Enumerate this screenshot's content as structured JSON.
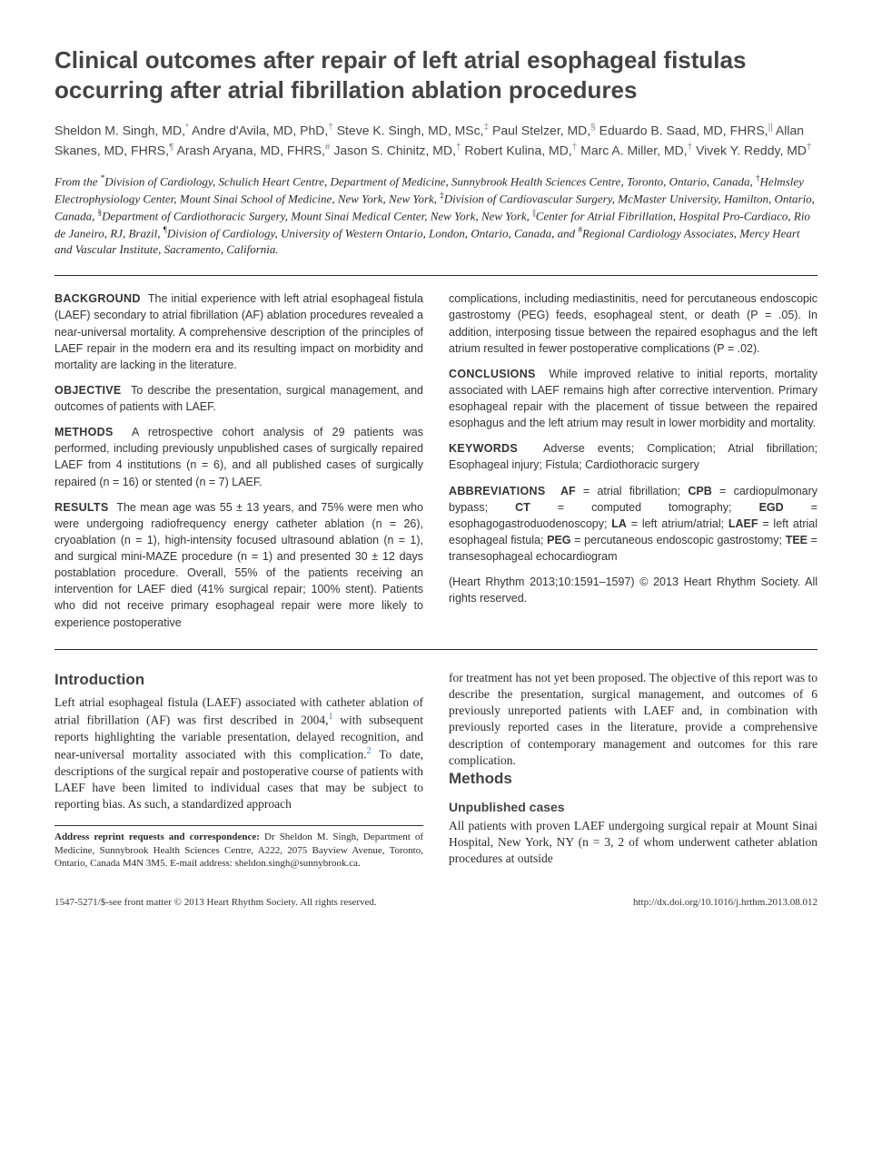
{
  "title": "Clinical outcomes after repair of left atrial esophageal fistulas occurring after atrial fibrillation ablation procedures",
  "authors_html": "Sheldon M. Singh, MD,<sup>*</sup> Andre d'Avila, MD, PhD,<sup>†</sup> Steve K. Singh, MD, MSc,<sup>‡</sup> Paul Stelzer, MD,<sup>§</sup> Eduardo B. Saad, MD, FHRS,<sup>||</sup> Allan Skanes, MD, FHRS,<sup>¶</sup> Arash Aryana, MD, FHRS,<sup>#</sup> Jason S. Chinitz, MD,<sup>†</sup> Robert Kulina, MD,<sup>†</sup> Marc A. Miller, MD,<sup>†</sup> Vivek Y. Reddy, MD<sup>†</sup>",
  "affiliations_html": "From the <sup>*</sup>Division of Cardiology, Schulich Heart Centre, Department of Medicine, Sunnybrook Health Sciences Centre, Toronto, Ontario, Canada, <sup>†</sup>Helmsley Electrophysiology Center, Mount Sinai School of Medicine, New York, New York, <sup>‡</sup>Division of Cardiovascular Surgery, McMaster University, Hamilton, Ontario, Canada, <sup>§</sup>Department of Cardiothoracic Surgery, Mount Sinai Medical Center, New York, New York, <sup>||</sup>Center for Atrial Fibrillation, Hospital Pro-Cardiaco, Rio de Janeiro, RJ, Brazil, <sup>¶</sup>Division of Cardiology, University of Western Ontario, London, Ontario, Canada, and <sup>#</sup>Regional Cardiology Associates, Mercy Heart and Vascular Institute, Sacramento, California.",
  "abstract": {
    "background": {
      "label": "BACKGROUND",
      "text": "The initial experience with left atrial esophageal fistula (LAEF) secondary to atrial fibrillation (AF) ablation procedures revealed a near-universal mortality. A comprehensive description of the principles of LAEF repair in the modern era and its resulting impact on morbidity and mortality are lacking in the literature."
    },
    "objective": {
      "label": "OBJECTIVE",
      "text": "To describe the presentation, surgical management, and outcomes of patients with LAEF."
    },
    "methods": {
      "label": "METHODS",
      "text": "A retrospective cohort analysis of 29 patients was performed, including previously unpublished cases of surgically repaired LAEF from 4 institutions (n = 6), and all published cases of surgically repaired (n = 16) or stented (n = 7) LAEF."
    },
    "results": {
      "label": "RESULTS",
      "text": "The mean age was 55 ± 13 years, and 75% were men who were undergoing radiofrequency energy catheter ablation (n = 26), cryoablation (n = 1), high-intensity focused ultrasound ablation (n = 1), and surgical mini-MAZE procedure (n = 1) and presented 30 ± 12 days postablation procedure. Overall, 55% of the patients receiving an intervention for LAEF died (41% surgical repair; 100% stent). Patients who did not receive primary esophageal repair were more likely to experience postoperative"
    },
    "results_cont": "complications, including mediastinitis, need for percutaneous endoscopic gastrostomy (PEG) feeds, esophageal stent, or death (P = .05). In addition, interposing tissue between the repaired esophagus and the left atrium resulted in fewer postoperative complications (P = .02).",
    "conclusions": {
      "label": "CONCLUSIONS",
      "text": "While improved relative to initial reports, mortality associated with LAEF remains high after corrective intervention. Primary esophageal repair with the placement of tissue between the repaired esophagus and the left atrium may result in lower morbidity and mortality."
    },
    "keywords": {
      "label": "KEYWORDS",
      "text": "Adverse events; Complication; Atrial fibrillation; Esophageal injury; Fistula; Cardiothoracic surgery"
    },
    "abbreviations": {
      "label": "ABBREVIATIONS",
      "text_html": "<b>AF</b> = atrial fibrillation; <b>CPB</b> = cardiopulmonary bypass; <b>CT</b> = computed tomography; <b>EGD</b> = esophagogastroduodenoscopy; <b>LA</b> = left atrium/atrial; <b>LAEF</b> = left atrial esophageal fistula; <b>PEG</b> = percutaneous endoscopic gastrostomy; <b>TEE</b> = transesophageal echocardiogram"
    },
    "citation": "(Heart Rhythm 2013;10:1591–1597) © 2013 Heart Rhythm Society. All rights reserved."
  },
  "body": {
    "intro_heading": "Introduction",
    "intro_text_html": "Left atrial esophageal fistula (LAEF) associated with catheter ablation of atrial fibrillation (AF) was first described in 2004,<span class='ref-sup'>1</span> with subsequent reports highlighting the variable presentation, delayed recognition, and near-universal mortality associated with this complication.<span class='ref-sup'>2</span> To date, descriptions of the surgical repair and postoperative course of patients with LAEF have been limited to individual cases that may be subject to reporting bias. As such, a standardized approach",
    "intro_cont": "for treatment has not yet been proposed. The objective of this report was to describe the presentation, surgical management, and outcomes of 6 previously unreported patients with LAEF and, in combination with previously reported cases in the literature, provide a comprehensive description of contemporary management and outcomes for this rare complication.",
    "methods_heading": "Methods",
    "methods_sub": "Unpublished cases",
    "methods_text": "All patients with proven LAEF undergoing surgical repair at Mount Sinai Hospital, New York, NY (n = 3, 2 of whom underwent catheter ablation procedures at outside"
  },
  "correspondence": {
    "label": "Address reprint requests and correspondence:",
    "text": "Dr Sheldon M. Singh, Department of Medicine, Sunnybrook Health Sciences Centre, A222, 2075 Bayview Avenue, Toronto, Ontario, Canada M4N 3M5. E-mail address: sheldon.singh@sunnybrook.ca."
  },
  "footer": {
    "left": "1547-5271/$-see front matter © 2013 Heart Rhythm Society. All rights reserved.",
    "right": "http://dx.doi.org/10.1016/j.hrthm.2013.08.012"
  }
}
